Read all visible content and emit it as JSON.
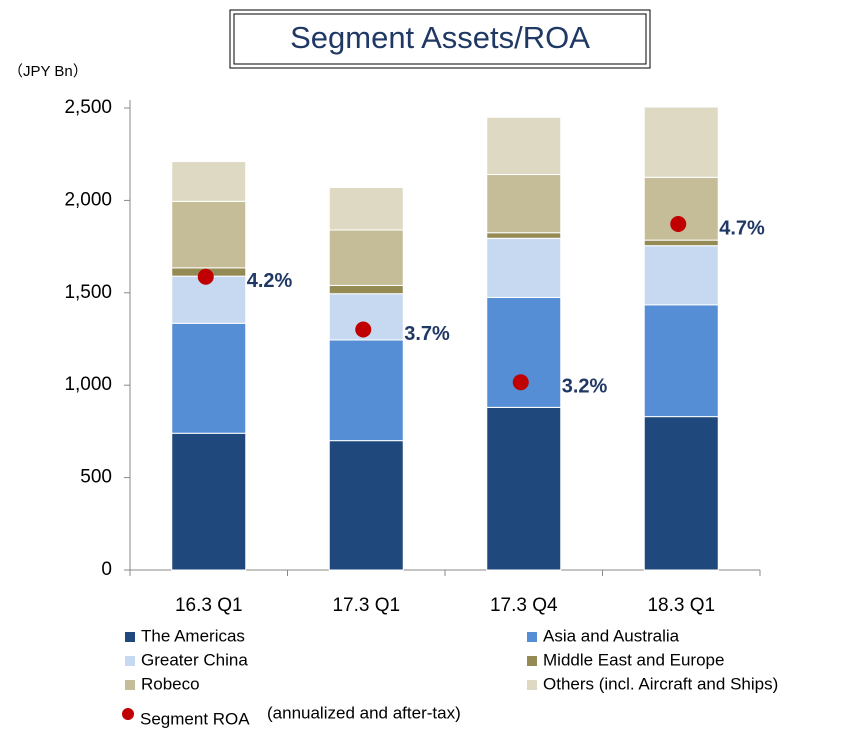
{
  "chart_data": {
    "type": "bar",
    "stacked": true,
    "title": "Segment Assets/ROA",
    "y_axis_label": "（JPY Bn）",
    "categories": [
      "16.3 Q1",
      "17.3 Q1",
      "17.3 Q4",
      "18.3 Q1"
    ],
    "series": [
      {
        "name": "The Americas",
        "color": "#1f497d",
        "values": [
          740,
          700,
          880,
          830
        ]
      },
      {
        "name": "Asia and Australia",
        "color": "#558ed5",
        "values": [
          595,
          545,
          595,
          605
        ]
      },
      {
        "name": "Greater China",
        "color": "#c6d9f1",
        "values": [
          255,
          250,
          320,
          320
        ]
      },
      {
        "name": "Middle East and Europe",
        "color": "#948a54",
        "values": [
          45,
          45,
          30,
          30
        ]
      },
      {
        "name": "Robeco",
        "color": "#c4bd97",
        "values": [
          360,
          300,
          315,
          340
        ]
      },
      {
        "name": "Others (incl. Aircraft and Ships)",
        "color": "#ddd9c3",
        "values": [
          215,
          230,
          310,
          380
        ]
      },
      {
        "name": "Segment ROA",
        "color": "#c00000",
        "axis": "y2",
        "values": [
          4.2,
          3.7,
          3.2,
          4.7
        ],
        "value_labels": [
          "4.2%",
          "3.7%",
          "3.2%",
          "4.7%"
        ]
      }
    ],
    "roa_note": "(annualized and after-tax)",
    "ylim": [
      0,
      2500
    ],
    "yticks": [
      0,
      500,
      {
        "value": 1000,
        "label": "1,000"
      },
      {
        "value": 1500,
        "label": "1,500"
      },
      {
        "value": 2000,
        "label": "2,000"
      },
      {
        "value": 2500,
        "label": "2,500"
      }
    ],
    "y2lim": [
      1.42,
      5.8
    ],
    "grid": false
  }
}
